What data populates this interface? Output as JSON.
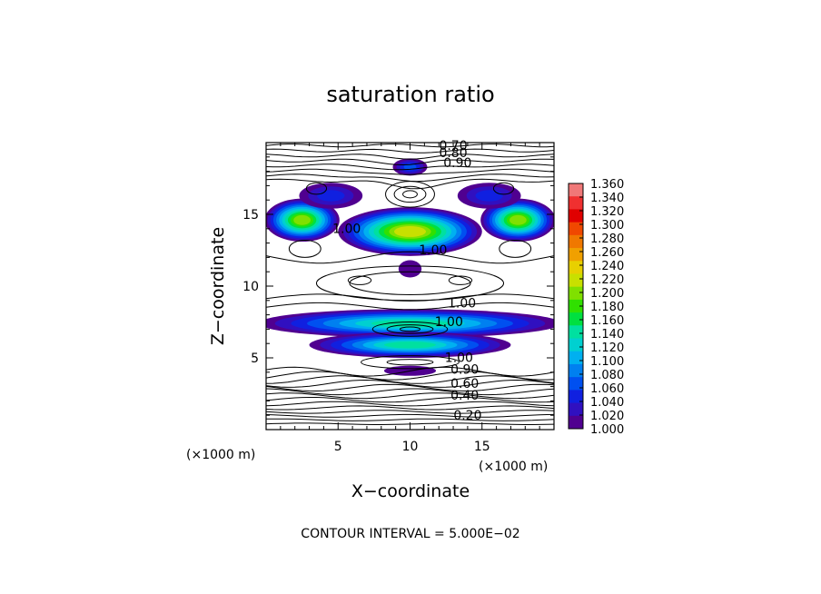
{
  "chart_data": {
    "type": "contour",
    "title": "saturation ratio",
    "xlabel": "X−coordinate",
    "ylabel": "Z−coordinate",
    "x_unit": "(×1000 m)",
    "y_unit": "(×1000 m)",
    "xlim": [
      0,
      20
    ],
    "ylim": [
      0,
      20
    ],
    "x_ticks": [
      "5",
      "10",
      "15"
    ],
    "x_tick_values": [
      5,
      10,
      15
    ],
    "y_ticks": [
      "5",
      "10",
      "15"
    ],
    "y_tick_values": [
      5,
      10,
      15
    ],
    "footer": "CONTOUR INTERVAL = 5.000E−02",
    "colorbar": {
      "min": 1.0,
      "max": 1.36,
      "labels": [
        "1.360",
        "1.340",
        "1.320",
        "1.300",
        "1.280",
        "1.260",
        "1.240",
        "1.220",
        "1.200",
        "1.180",
        "1.160",
        "1.140",
        "1.120",
        "1.100",
        "1.080",
        "1.060",
        "1.040",
        "1.020",
        "1.000"
      ],
      "colors": [
        "#f07878",
        "#f03030",
        "#e00000",
        "#f04800",
        "#f07800",
        "#f0a000",
        "#e8d000",
        "#c8e000",
        "#80e000",
        "#30e000",
        "#00e040",
        "#00e0a0",
        "#00d0d0",
        "#00b0f0",
        "#0080f0",
        "#0050f0",
        "#1020e0",
        "#3010c0",
        "#500090"
      ]
    },
    "contour_labels": [
      {
        "text": "0.70",
        "x": 13.0,
        "z": 19.5
      },
      {
        "text": "0.80",
        "x": 13.0,
        "z": 19.0
      },
      {
        "text": "0.90",
        "x": 13.3,
        "z": 18.3
      },
      {
        "text": "1.00",
        "x": 5.6,
        "z": 13.7
      },
      {
        "text": "1.00",
        "x": 11.6,
        "z": 12.2
      },
      {
        "text": "1.00",
        "x": 13.6,
        "z": 8.5
      },
      {
        "text": "1.00",
        "x": 12.7,
        "z": 7.2
      },
      {
        "text": "1.00",
        "x": 13.4,
        "z": 4.7
      },
      {
        "text": "0.90",
        "x": 13.8,
        "z": 3.9
      },
      {
        "text": "0.60",
        "x": 13.8,
        "z": 2.9
      },
      {
        "text": "0.40",
        "x": 13.8,
        "z": 2.1
      },
      {
        "text": "0.20",
        "x": 14.0,
        "z": 0.7
      }
    ],
    "supersaturated_regions": [
      {
        "name": "upper-left lobe",
        "cx": 2.5,
        "cz": 14.6,
        "peak": 1.2
      },
      {
        "name": "upper-right lobe",
        "cx": 17.5,
        "cz": 14.6,
        "peak": 1.2
      },
      {
        "name": "upper-left ridge",
        "cx": 4.5,
        "cz": 16.3,
        "peak": 1.04
      },
      {
        "name": "upper-right ridge",
        "cx": 15.5,
        "cz": 16.3,
        "peak": 1.04
      },
      {
        "name": "top cell",
        "cx": 10.0,
        "cz": 18.3,
        "peak": 1.06
      },
      {
        "name": "central arch",
        "cx": 10.0,
        "cz": 13.8,
        "peak": 1.22
      },
      {
        "name": "central cell",
        "cx": 10.0,
        "cz": 11.2,
        "peak": 1.0
      },
      {
        "name": "middle band",
        "cx": 10.0,
        "cz": 7.4,
        "peak": 1.14
      },
      {
        "name": "lower band",
        "cx": 10.0,
        "cz": 5.9,
        "peak": 1.14
      },
      {
        "name": "base cell",
        "cx": 10.0,
        "cz": 4.1,
        "peak": 1.01
      }
    ]
  }
}
